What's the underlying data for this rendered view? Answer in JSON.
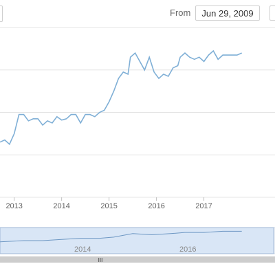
{
  "range_selector": {
    "from_label": "From",
    "from_value": "Jun 29, 2009"
  },
  "navigator": {
    "labels": [
      "2014",
      "2016"
    ],
    "handle": "III"
  },
  "colors": {
    "line": "#7fafd6",
    "grid": "#e4e4e4",
    "navigator_mask": "#d9e6f6"
  },
  "chart_data": {
    "type": "line",
    "x_ticks": [
      "2013",
      "2014",
      "2015",
      "2016",
      "2017"
    ],
    "x_range": [
      2012.7,
      2018.5
    ],
    "y_range": [
      0,
      4
    ],
    "grid_lines": [
      0,
      1,
      2,
      3,
      4
    ],
    "series": [
      {
        "x": [
          2012.7,
          2012.8,
          2012.9,
          2013.0,
          2013.1,
          2013.2,
          2013.3,
          2013.4,
          2013.5,
          2013.6,
          2013.7,
          2013.8,
          2013.9,
          2014.0,
          2014.1,
          2014.2,
          2014.3,
          2014.4,
          2014.5,
          2014.6,
          2014.7,
          2014.8,
          2014.9,
          2015.0,
          2015.1,
          2015.2,
          2015.3,
          2015.4,
          2015.45,
          2015.55,
          2015.65,
          2015.75,
          2015.85,
          2015.95,
          2016.05,
          2016.15,
          2016.25,
          2016.35,
          2016.45,
          2016.5,
          2016.6,
          2016.7,
          2016.8,
          2016.9,
          2017.0,
          2017.1,
          2017.2,
          2017.3,
          2017.4,
          2017.5,
          2017.6,
          2017.7,
          2017.8
        ],
        "y": [
          1.3,
          1.35,
          1.25,
          1.5,
          1.95,
          1.95,
          1.8,
          1.85,
          1.85,
          1.7,
          1.8,
          1.75,
          1.9,
          1.82,
          1.85,
          1.95,
          1.95,
          1.75,
          1.95,
          1.95,
          1.9,
          2.0,
          2.05,
          2.25,
          2.5,
          2.8,
          2.95,
          2.9,
          3.3,
          3.4,
          3.2,
          3.0,
          3.3,
          2.95,
          2.8,
          2.9,
          2.85,
          3.05,
          3.1,
          3.3,
          3.4,
          3.3,
          3.25,
          3.3,
          3.2,
          3.35,
          3.45,
          3.25,
          3.35,
          3.35,
          3.35,
          3.35,
          3.4
        ]
      }
    ],
    "navigator_series": {
      "x": [
        2012.7,
        2013.2,
        2013.6,
        2014.0,
        2014.4,
        2014.8,
        2015.1,
        2015.5,
        2015.9,
        2016.3,
        2016.6,
        2017.0,
        2017.4,
        2017.8
      ],
      "y": [
        0.45,
        0.5,
        0.5,
        0.55,
        0.6,
        0.6,
        0.65,
        0.8,
        0.75,
        0.8,
        0.85,
        0.85,
        0.9,
        0.9
      ]
    }
  }
}
